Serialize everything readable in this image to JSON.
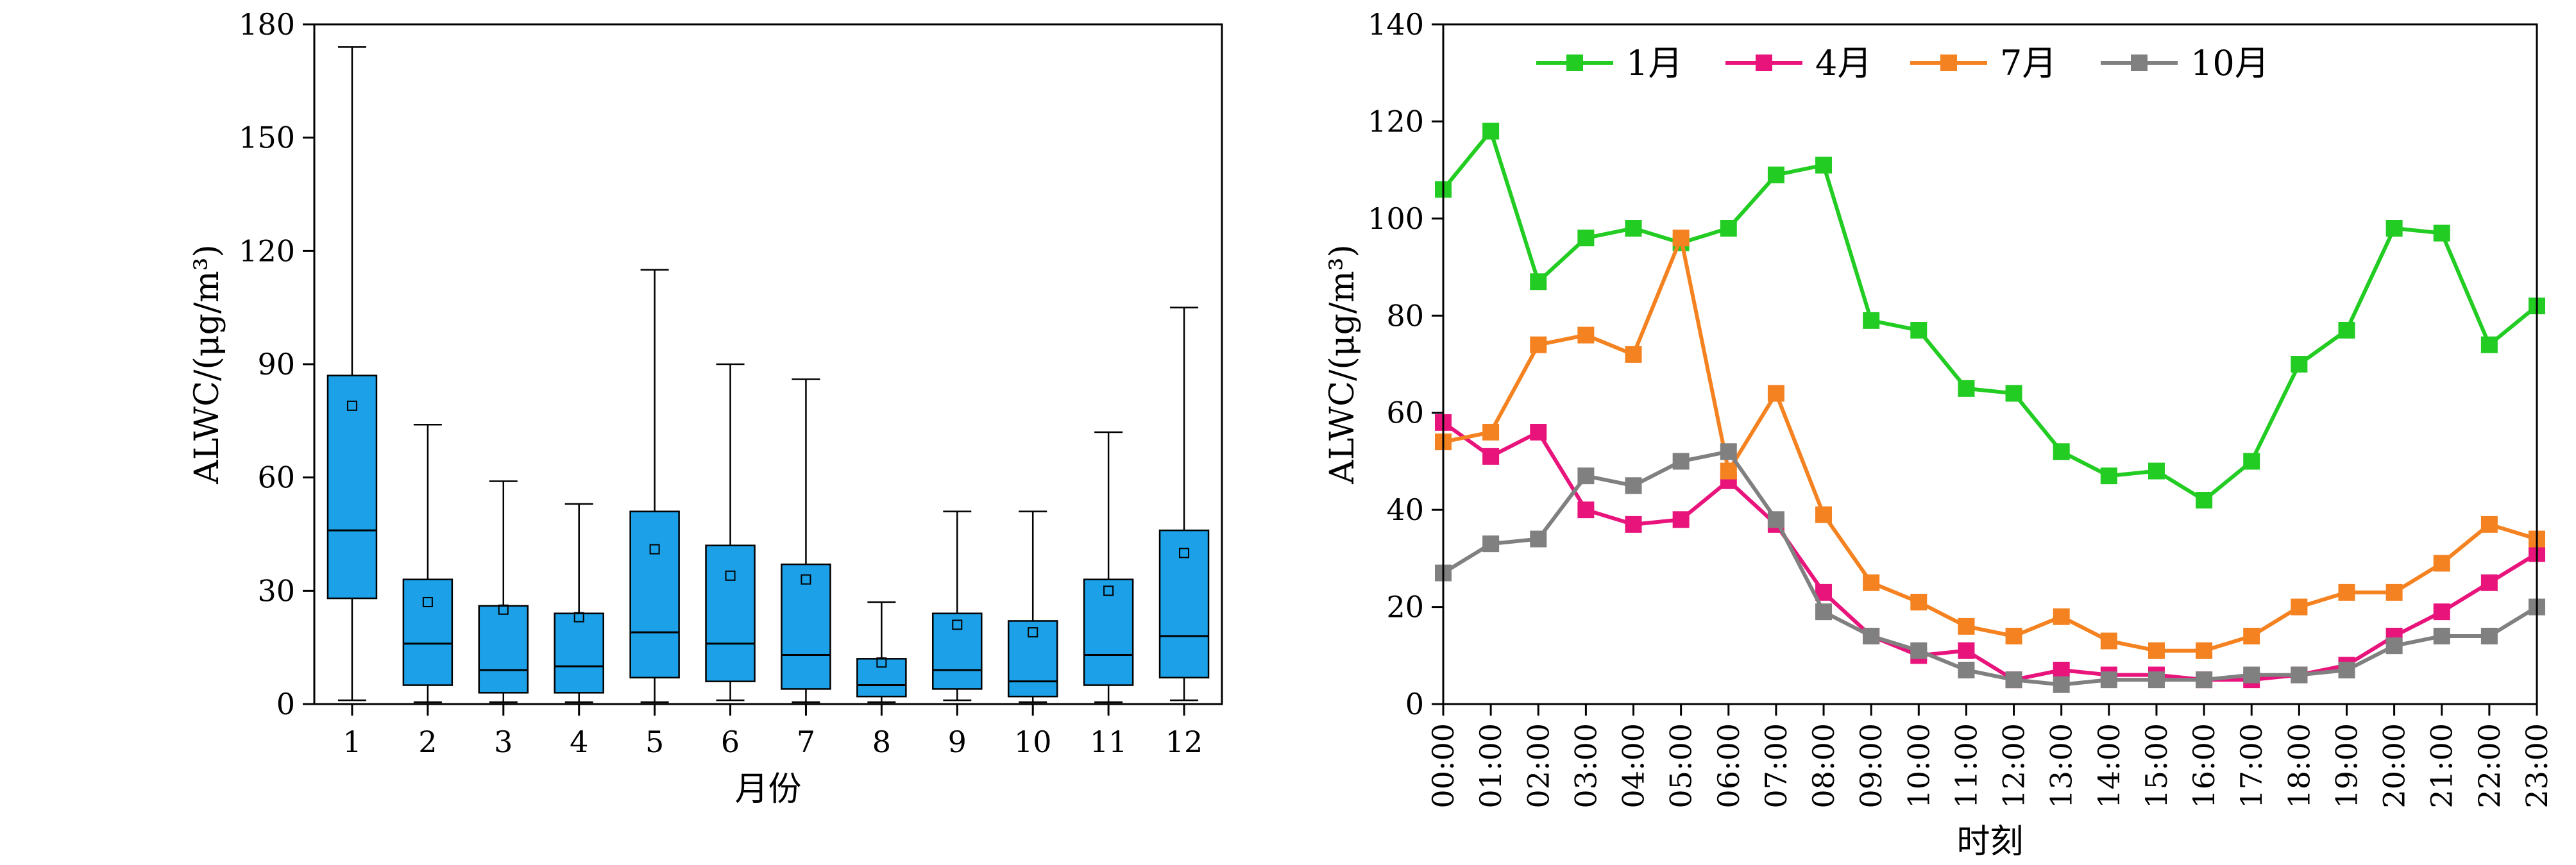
{
  "chart_data": [
    {
      "type": "box",
      "title": "",
      "xlabel": "月份",
      "ylabel": "ALWC/(μg/m³)",
      "ylim": [
        0,
        180
      ],
      "yticks": [
        0,
        30,
        60,
        90,
        120,
        150,
        180
      ],
      "categories": [
        "1",
        "2",
        "3",
        "4",
        "5",
        "6",
        "7",
        "8",
        "9",
        "10",
        "11",
        "12"
      ],
      "boxes": [
        {
          "min": 1,
          "q1": 28,
          "median": 46,
          "q3": 87,
          "max": 174,
          "mean": 79
        },
        {
          "min": 0.5,
          "q1": 5,
          "median": 16,
          "q3": 33,
          "max": 74,
          "mean": 27
        },
        {
          "min": 0.5,
          "q1": 3,
          "median": 9,
          "q3": 26,
          "max": 59,
          "mean": 25
        },
        {
          "min": 0.5,
          "q1": 3,
          "median": 10,
          "q3": 24,
          "max": 53,
          "mean": 23
        },
        {
          "min": 0.5,
          "q1": 7,
          "median": 19,
          "q3": 51,
          "max": 115,
          "mean": 41
        },
        {
          "min": 1,
          "q1": 6,
          "median": 16,
          "q3": 42,
          "max": 90,
          "mean": 34
        },
        {
          "min": 0.5,
          "q1": 4,
          "median": 13,
          "q3": 37,
          "max": 86,
          "mean": 33
        },
        {
          "min": 0.5,
          "q1": 2,
          "median": 5,
          "q3": 12,
          "max": 27,
          "mean": 11
        },
        {
          "min": 1,
          "q1": 4,
          "median": 9,
          "q3": 24,
          "max": 51,
          "mean": 21
        },
        {
          "min": 0.5,
          "q1": 2,
          "median": 6,
          "q3": 22,
          "max": 51,
          "mean": 19
        },
        {
          "min": 0.5,
          "q1": 5,
          "median": 13,
          "q3": 33,
          "max": 72,
          "mean": 30
        },
        {
          "min": 1,
          "q1": 7,
          "median": 18,
          "q3": 46,
          "max": 105,
          "mean": 40
        }
      ],
      "box_color": "#1ca1e8"
    },
    {
      "type": "line",
      "title": "",
      "xlabel": "时刻",
      "ylabel": "ALWC/(μg/m³)",
      "ylim": [
        0,
        140
      ],
      "yticks": [
        0,
        20,
        40,
        60,
        80,
        100,
        120,
        140
      ],
      "legend_position": "top",
      "x": [
        "00:00",
        "01:00",
        "02:00",
        "03:00",
        "04:00",
        "05:00",
        "06:00",
        "07:00",
        "08:00",
        "09:00",
        "10:00",
        "11:00",
        "12:00",
        "13:00",
        "14:00",
        "15:00",
        "16:00",
        "17:00",
        "18:00",
        "19:00",
        "20:00",
        "21:00",
        "22:00",
        "23:00"
      ],
      "series": [
        {
          "name": "1月",
          "color": "#22cc22",
          "values": [
            106,
            118,
            87,
            96,
            98,
            95,
            98,
            109,
            111,
            79,
            77,
            65,
            64,
            52,
            47,
            48,
            42,
            50,
            70,
            77,
            98,
            97,
            74,
            82
          ]
        },
        {
          "name": "4月",
          "color": "#e8147c",
          "values": [
            58,
            51,
            56,
            40,
            37,
            38,
            46,
            37,
            23,
            14,
            10,
            11,
            5,
            7,
            6,
            6,
            5,
            5,
            6,
            8,
            14,
            19,
            25,
            31
          ]
        },
        {
          "name": "7月",
          "color": "#f58220",
          "values": [
            54,
            56,
            74,
            76,
            72,
            96,
            48,
            64,
            39,
            25,
            21,
            16,
            14,
            18,
            13,
            11,
            11,
            14,
            20,
            23,
            23,
            29,
            37,
            34
          ]
        },
        {
          "name": "10月",
          "color": "#808080",
          "values": [
            27,
            33,
            34,
            47,
            45,
            50,
            52,
            38,
            19,
            14,
            11,
            7,
            5,
            4,
            5,
            5,
            5,
            6,
            6,
            7,
            12,
            14,
            14,
            20
          ]
        }
      ]
    }
  ]
}
